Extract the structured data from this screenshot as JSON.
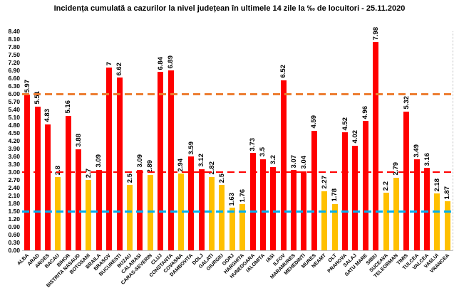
{
  "chart_data": {
    "type": "bar",
    "title": "Incidența cumulată a cazurilor la nivel județean în ultimele 14 zile la ‰ de locuitori - 25.11.2020",
    "xlabel": "",
    "ylabel": "",
    "ylim": [
      0,
      8.4
    ],
    "y_tick_step": 0.3,
    "y_tick_labels": [
      "0.00",
      "0.30",
      "0.60",
      "0.90",
      "1.20",
      "1.50",
      "1.80",
      "2.10",
      "2.40",
      "2.70",
      "3.00",
      "3.30",
      "3.60",
      "3.90",
      "4.20",
      "4.50",
      "4.80",
      "5.10",
      "5.40",
      "5.70",
      "6.00",
      "6.30",
      "6.60",
      "6.90",
      "7.20",
      "7.50",
      "7.80",
      "8.10",
      "8.40"
    ],
    "grid": false,
    "legend": false,
    "categories": [
      "ALBA",
      "ARAD",
      "ARGES",
      "BACAU",
      "BIHOR",
      "BISTRITA NASAUD",
      "BOTOSANI",
      "BRAILA",
      "BRASOV",
      "BUCURESTI",
      "BUZAU",
      "CALARASI",
      "CARAS-SEVERIN",
      "CLUJ",
      "CONSTANTA",
      "COVASNA",
      "DAMBOVITA",
      "DOLJ",
      "GALATI",
      "GIURGIU",
      "GORJ",
      "HARGHITA",
      "HUNEDOARA",
      "IALOMITA",
      "IASI",
      "ILFOV",
      "MARAMURES",
      "MEHEDINTI",
      "MURES",
      "NEAMT",
      "OLT",
      "PRAHOVA",
      "SALAJ",
      "SATU MARE",
      "SIBIU",
      "SUCEAVA",
      "TELEORMAN",
      "TIMIS",
      "TULCEA",
      "VALCEA",
      "VASLUI",
      "VRANCEA"
    ],
    "values": [
      5.97,
      5.51,
      4.83,
      2.8,
      5.16,
      3.88,
      2.7,
      3.09,
      7,
      6.62,
      2.5,
      3.09,
      2.89,
      6.84,
      6.89,
      2.94,
      3.59,
      3.12,
      2.82,
      2.5,
      1.63,
      1.76,
      3.73,
      3.5,
      3.2,
      6.52,
      3.07,
      3.04,
      4.59,
      2.27,
      1.78,
      4.52,
      4.02,
      4.96,
      7.98,
      2.2,
      2.79,
      5.32,
      3.49,
      3.16,
      2.18,
      1.87
    ],
    "value_labels": [
      "5.97",
      "5.51",
      "4.83",
      "2.8",
      "5.16",
      "3.88",
      "2.7",
      "3.09",
      "7",
      "6.62",
      "2.5",
      "3.09",
      "2.89",
      "6.84",
      "6.89",
      "2.94",
      "3.59",
      "3.12",
      "2.82",
      "2.5",
      "1.63",
      "1.76",
      "3.73",
      "3.5",
      "3.2",
      "6.52",
      "3.07",
      "3.04",
      "4.59",
      "2.27",
      "1.78",
      "4.52",
      "4.02",
      "4.96",
      "7.98",
      "2.2",
      "2.79",
      "5.32",
      "3.49",
      "3.16",
      "2.18",
      "1.87"
    ],
    "bar_color_names": [
      "red",
      "red",
      "red",
      "yellow",
      "red",
      "red",
      "yellow",
      "red",
      "red",
      "red",
      "yellow",
      "red",
      "yellow",
      "red",
      "red",
      "yellow",
      "red",
      "red",
      "yellow",
      "yellow",
      "yellow",
      "yellow",
      "red",
      "red",
      "red",
      "red",
      "red",
      "red",
      "red",
      "yellow",
      "yellow",
      "red",
      "red",
      "red",
      "red",
      "yellow",
      "yellow",
      "red",
      "red",
      "red",
      "yellow",
      "yellow"
    ],
    "palette": {
      "red": "#FF0000",
      "yellow": "#FFC000"
    },
    "reference_lines": [
      {
        "value": 6.0,
        "color": "#ED7D31",
        "style": "dashed",
        "thickness": 3
      },
      {
        "value": 3.0,
        "color": "#FF0000",
        "style": "dashed",
        "thickness": 2.5
      },
      {
        "value": 1.5,
        "color": "#00B0F0",
        "style": "dashed",
        "thickness": 3
      }
    ]
  }
}
